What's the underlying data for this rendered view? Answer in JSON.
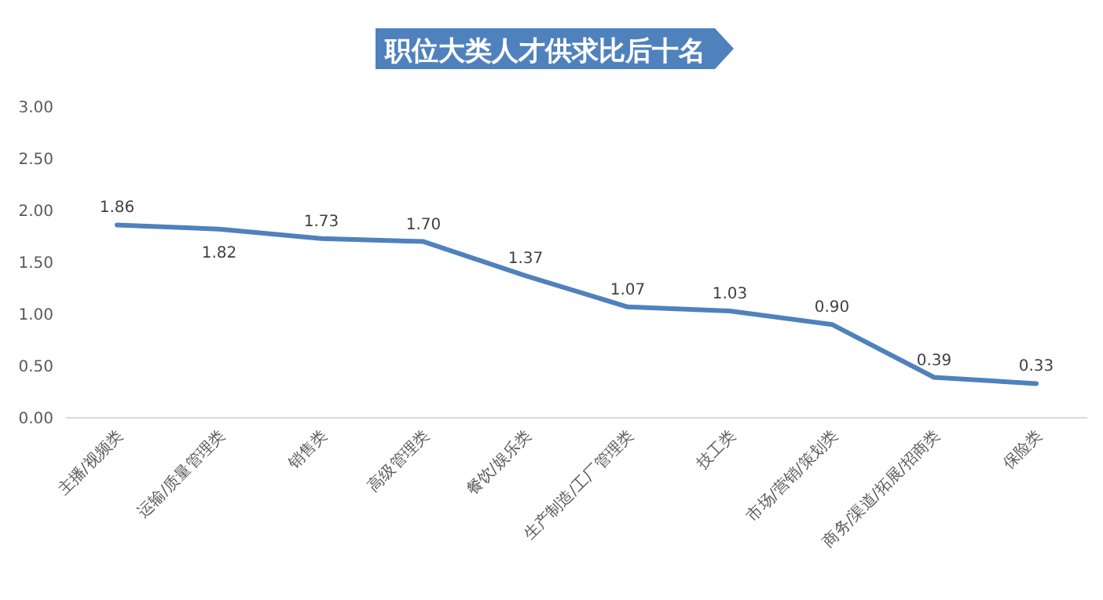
{
  "chart_data": {
    "type": "line",
    "title": "职位大类人才供求比后十名",
    "categories": [
      "主播/视频类",
      "运输/质量管理类",
      "销售类",
      "高级管理类",
      "餐饮/娱乐类",
      "生产制造/工厂管理类",
      "技工类",
      "市场/营销/策划类",
      "商务/渠道/拓展/招商类",
      "保险类"
    ],
    "values": [
      1.86,
      1.82,
      1.73,
      1.7,
      1.37,
      1.07,
      1.03,
      0.9,
      0.39,
      0.33
    ],
    "color": "#4f81bd",
    "ylim": [
      0,
      3
    ],
    "yticks": [
      {
        "value": 0,
        "label": "0.00"
      },
      {
        "value": 0.5,
        "label": "0.50"
      },
      {
        "value": 1,
        "label": "1.00"
      },
      {
        "value": 1.5,
        "label": "1.50"
      },
      {
        "value": 2,
        "label": "2.00"
      },
      {
        "value": 2.5,
        "label": "2.50"
      },
      {
        "value": 3,
        "label": "3.00"
      }
    ],
    "value_labels": [
      "1.86",
      "1.82",
      "1.73",
      "1.70",
      "1.37",
      "1.07",
      "1.03",
      "0.90",
      "0.39",
      "0.33"
    ],
    "marker": "none",
    "line_style": "solid",
    "grid": false
  }
}
